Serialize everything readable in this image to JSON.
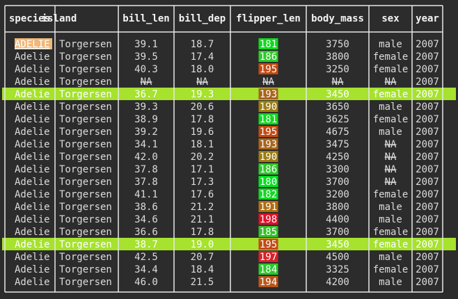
{
  "table": {
    "header": [
      "species",
      "island",
      "bill_len",
      "bill_dep",
      "flipper_len",
      "body_mass",
      "sex",
      "year"
    ],
    "rows": [
      [
        "ADELIE",
        "Torgersen",
        "39.1",
        "18.7",
        "181",
        "3750",
        "male",
        "2007"
      ],
      [
        "Adelie",
        "Torgersen",
        "39.5",
        "17.4",
        "186",
        "3800",
        "female",
        "2007"
      ],
      [
        "Adelie",
        "Torgersen",
        "40.3",
        "18.0",
        "195",
        "3250",
        "female",
        "2007"
      ],
      [
        "Adelie",
        "Torgersen",
        "NA",
        "NA",
        "NA",
        "NA",
        "NA",
        "2007"
      ],
      [
        "Adelie",
        "Torgersen",
        "36.7",
        "19.3",
        "193",
        "3450",
        "female",
        "2007"
      ],
      [
        "Adelie",
        "Torgersen",
        "39.3",
        "20.6",
        "190",
        "3650",
        "male",
        "2007"
      ],
      [
        "Adelie",
        "Torgersen",
        "38.9",
        "17.8",
        "181",
        "3625",
        "female",
        "2007"
      ],
      [
        "Adelie",
        "Torgersen",
        "39.2",
        "19.6",
        "195",
        "4675",
        "male",
        "2007"
      ],
      [
        "Adelie",
        "Torgersen",
        "34.1",
        "18.1",
        "193",
        "3475",
        "NA",
        "2007"
      ],
      [
        "Adelie",
        "Torgersen",
        "42.0",
        "20.2",
        "190",
        "4250",
        "NA",
        "2007"
      ],
      [
        "Adelie",
        "Torgersen",
        "37.8",
        "17.1",
        "186",
        "3300",
        "NA",
        "2007"
      ],
      [
        "Adelie",
        "Torgersen",
        "37.8",
        "17.3",
        "180",
        "3700",
        "NA",
        "2007"
      ],
      [
        "Adelie",
        "Torgersen",
        "41.1",
        "17.6",
        "182",
        "3200",
        "female",
        "2007"
      ],
      [
        "Adelie",
        "Torgersen",
        "38.6",
        "21.2",
        "191",
        "3800",
        "male",
        "2007"
      ],
      [
        "Adelie",
        "Torgersen",
        "34.6",
        "21.1",
        "198",
        "4400",
        "male",
        "2007"
      ],
      [
        "Adelie",
        "Torgersen",
        "36.6",
        "17.8",
        "185",
        "3700",
        "female",
        "2007"
      ],
      [
        "Adelie",
        "Torgersen",
        "38.7",
        "19.0",
        "195",
        "3450",
        "female",
        "2007"
      ],
      [
        "Adelie",
        "Torgersen",
        "42.5",
        "20.7",
        "197",
        "4500",
        "male",
        "2007"
      ],
      [
        "Adelie",
        "Torgersen",
        "34.4",
        "18.4",
        "184",
        "3325",
        "female",
        "2007"
      ],
      [
        "Adelie",
        "Torgersen",
        "46.0",
        "21.5",
        "194",
        "4200",
        "male",
        "2007"
      ]
    ],
    "flipper_colors": [
      "#10d820",
      "#2ec82a",
      "#c24a12",
      null,
      "#a8641a",
      "#9c7c10",
      "#10d820",
      "#c24a12",
      "#a8641a",
      "#9c7c10",
      "#2ec82a",
      "#00e020",
      "#12d822",
      "#ae6e10",
      "#e0102a",
      "#34c02a",
      "#c24a12",
      "#d82028",
      "#2ac82a",
      "#b8561a"
    ],
    "highlighted_rows": [
      4,
      16
    ],
    "selected_cell": [
      0,
      0
    ]
  }
}
